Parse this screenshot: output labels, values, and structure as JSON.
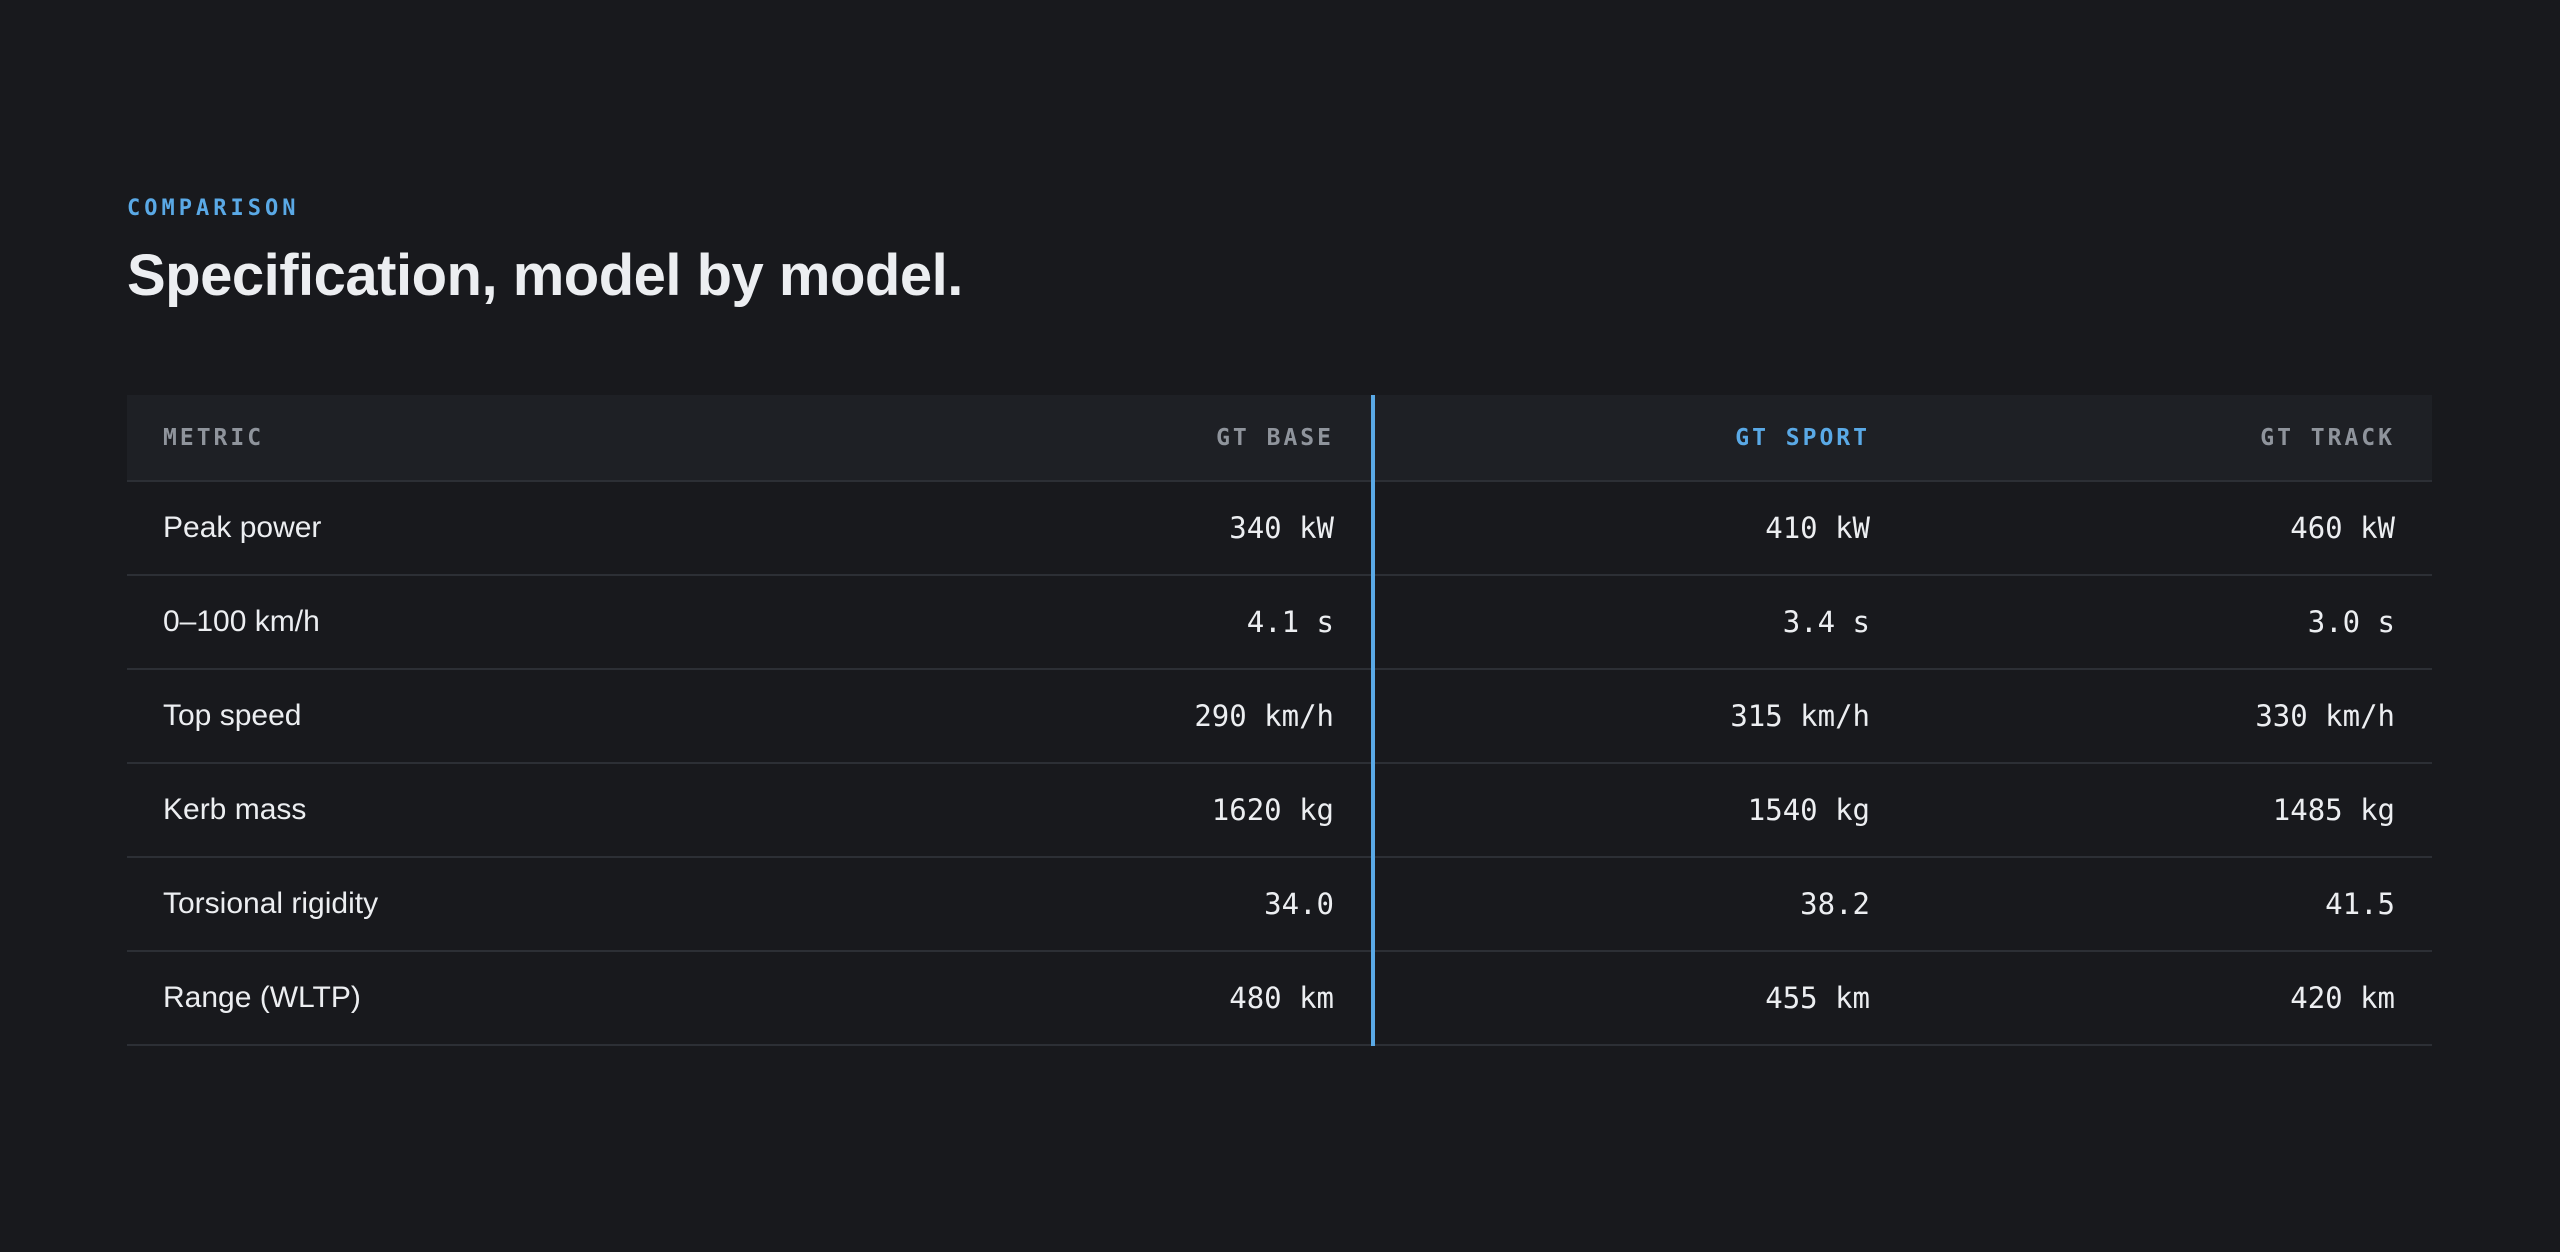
{
  "header": {
    "eyebrow": "COMPARISON",
    "title": "Specification, model by model."
  },
  "table": {
    "columns": [
      "METRIC",
      "GT BASE",
      "GT SPORT",
      "GT TRACK"
    ],
    "rows": [
      [
        "Peak power",
        "340 kW",
        "410 kW",
        "460 kW"
      ],
      [
        "0–100 km/h",
        "4.1 s",
        "3.4 s",
        "3.0 s"
      ],
      [
        "Top speed",
        "290 km/h",
        "315 km/h",
        "330 km/h"
      ],
      [
        "Kerb mass",
        "1620 kg",
        "1540 kg",
        "1485 kg"
      ],
      [
        "Torsional rigidity",
        "34.0",
        "38.2",
        "41.5"
      ],
      [
        "Range (WLTP)",
        "480 km",
        "455 km",
        "420 km"
      ]
    ]
  }
}
